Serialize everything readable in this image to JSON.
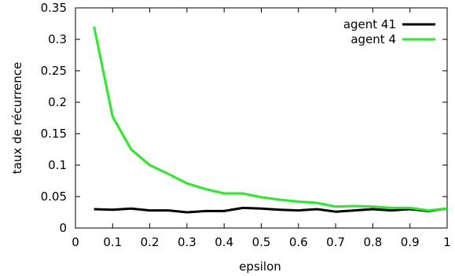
{
  "chart_data": {
    "type": "line",
    "xlabel": "epsilon",
    "ylabel": "taux de récurrence",
    "xlim": [
      0,
      1
    ],
    "ylim": [
      0,
      0.35
    ],
    "xticks": [
      "0",
      "0.1",
      "0.2",
      "0.3",
      "0.4",
      "0.5",
      "0.6",
      "0.7",
      "0.8",
      "0.9",
      "1"
    ],
    "yticks": [
      "0",
      "0.05",
      "0.1",
      "0.15",
      "0.2",
      "0.25",
      "0.3",
      "0.35"
    ],
    "grid": false,
    "legend_position": "top-right",
    "series": [
      {
        "name": "agent 41",
        "color": "#000000",
        "x": [
          0.05,
          0.1,
          0.15,
          0.2,
          0.25,
          0.3,
          0.35,
          0.4,
          0.45,
          0.5,
          0.55,
          0.6,
          0.65,
          0.7,
          0.75,
          0.8,
          0.85,
          0.9,
          0.95,
          1.0
        ],
        "y": [
          0.03,
          0.029,
          0.031,
          0.028,
          0.028,
          0.025,
          0.027,
          0.027,
          0.032,
          0.031,
          0.029,
          0.028,
          0.03,
          0.026,
          0.028,
          0.03,
          0.028,
          0.03,
          0.027,
          0.031
        ]
      },
      {
        "name": "agent 4",
        "color": "#22ee22",
        "x": [
          0.05,
          0.1,
          0.15,
          0.2,
          0.25,
          0.3,
          0.35,
          0.4,
          0.45,
          0.5,
          0.55,
          0.6,
          0.65,
          0.7,
          0.75,
          0.8,
          0.85,
          0.9,
          0.95,
          1.0
        ],
        "y": [
          0.32,
          0.177,
          0.125,
          0.1,
          0.086,
          0.071,
          0.062,
          0.055,
          0.055,
          0.049,
          0.045,
          0.042,
          0.04,
          0.034,
          0.035,
          0.034,
          0.032,
          0.032,
          0.028,
          0.031
        ]
      }
    ]
  }
}
